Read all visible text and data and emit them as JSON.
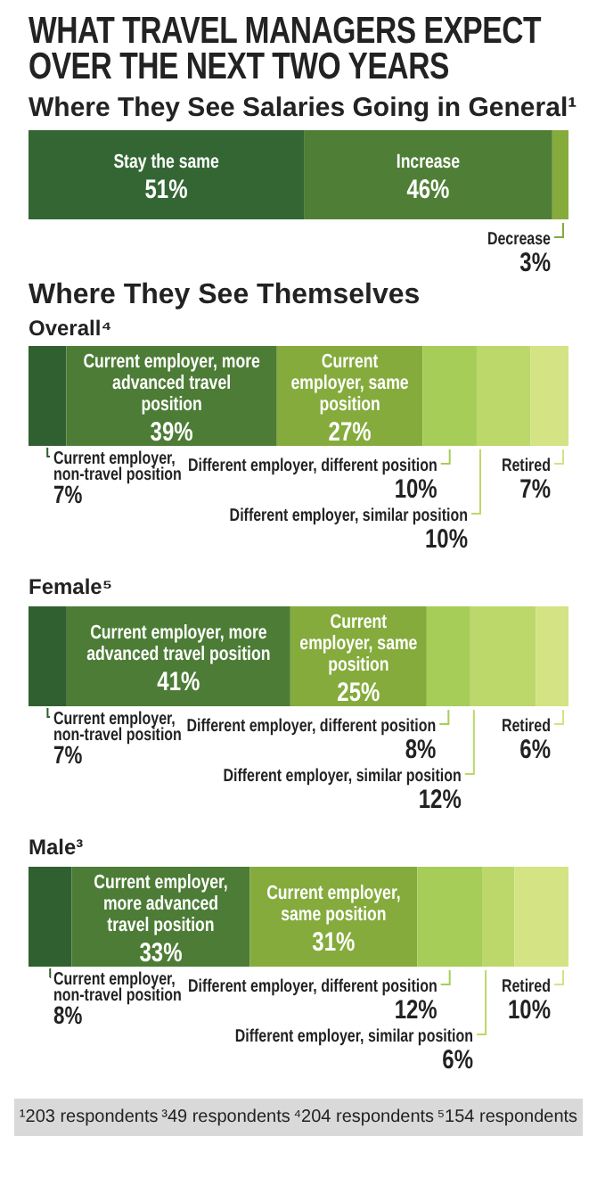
{
  "chart_data": [
    {
      "type": "bar",
      "orientation": "horizontal",
      "stacked": true,
      "title": "WHAT TRAVEL MANAGERS EXPECT OVER THE NEXT TWO YEARS",
      "subtitle": "Where They See Salaries Going in General¹",
      "categories": [
        null
      ],
      "series": [
        {
          "name": "Stay the same",
          "color": "#336633",
          "values": [
            51
          ],
          "value_labels": [
            "51%"
          ]
        },
        {
          "name": "Increase",
          "color": "#4f7f36",
          "values": [
            46
          ],
          "value_labels": [
            "46%"
          ]
        },
        {
          "name": "Decrease",
          "color": "#84ab3c",
          "values": [
            3
          ],
          "value_labels": [
            "3%"
          ]
        }
      ]
    },
    {
      "type": "bar",
      "orientation": "horizontal",
      "stacked": true,
      "title": "Where They See Themselves",
      "subtitle": "Overall⁴",
      "categories": [
        null
      ],
      "series": [
        {
          "name": "Current employer, non-travel position",
          "color": "#30602f",
          "values": [
            7
          ],
          "value_labels": [
            "7%"
          ]
        },
        {
          "name": "Current employer, more advanced travel position",
          "color": "#4c7c35",
          "values": [
            39
          ],
          "value_labels": [
            "39%"
          ]
        },
        {
          "name": "Current employer, same position",
          "color": "#84ab3c",
          "values": [
            27
          ],
          "value_labels": [
            "27%"
          ]
        },
        {
          "name": "Different employer, different position",
          "color": "#a6cd58",
          "values": [
            10
          ],
          "value_labels": [
            "10%"
          ]
        },
        {
          "name": "Different employer, similar position",
          "color": "#bcd86a",
          "values": [
            10
          ],
          "value_labels": [
            "10%"
          ]
        },
        {
          "name": "Retired",
          "color": "#d4e383",
          "values": [
            7
          ],
          "value_labels": [
            "7%"
          ]
        }
      ]
    },
    {
      "type": "bar",
      "orientation": "horizontal",
      "stacked": true,
      "title": "Female⁵",
      "categories": [
        null
      ],
      "series": [
        {
          "name": "Current employer, non-travel position",
          "color": "#30602f",
          "values": [
            7
          ],
          "value_labels": [
            "7%"
          ]
        },
        {
          "name": "Current employer, more advanced travel position",
          "color": "#4c7c35",
          "values": [
            41
          ],
          "value_labels": [
            "41%"
          ]
        },
        {
          "name": "Current employer, same position",
          "color": "#84ab3c",
          "values": [
            25
          ],
          "value_labels": [
            "25%"
          ]
        },
        {
          "name": "Different employer, different position",
          "color": "#a6cd58",
          "values": [
            8
          ],
          "value_labels": [
            "8%"
          ]
        },
        {
          "name": "Different employer, similar position",
          "color": "#bcd86a",
          "values": [
            12
          ],
          "value_labels": [
            "12%"
          ]
        },
        {
          "name": "Retired",
          "color": "#d4e383",
          "values": [
            6
          ],
          "value_labels": [
            "6%"
          ]
        }
      ]
    },
    {
      "type": "bar",
      "orientation": "horizontal",
      "stacked": true,
      "title": "Male³",
      "categories": [
        null
      ],
      "annotations": [
        "¹203 respondents",
        "³49 respondents",
        "⁴204 respondents",
        "⁵154 respondents"
      ],
      "series": [
        {
          "name": "Current employer, non-travel position",
          "color": "#30602f",
          "values": [
            8
          ],
          "value_labels": [
            "8%"
          ]
        },
        {
          "name": "Current employer, more advanced travel position",
          "color": "#4c7c35",
          "values": [
            33
          ],
          "value_labels": [
            "33%"
          ]
        },
        {
          "name": "Current employer, same position",
          "color": "#84ab3c",
          "values": [
            31
          ],
          "value_labels": [
            "31%"
          ]
        },
        {
          "name": "Different employer, different position",
          "color": "#a6cd58",
          "values": [
            12
          ],
          "value_labels": [
            "12%"
          ]
        },
        {
          "name": "Different employer, similar position",
          "color": "#bcd86a",
          "values": [
            6
          ],
          "value_labels": [
            "6%"
          ]
        },
        {
          "name": "Retired",
          "color": "#d4e383",
          "values": [
            10
          ],
          "value_labels": [
            "10%"
          ]
        }
      ]
    }
  ]
}
